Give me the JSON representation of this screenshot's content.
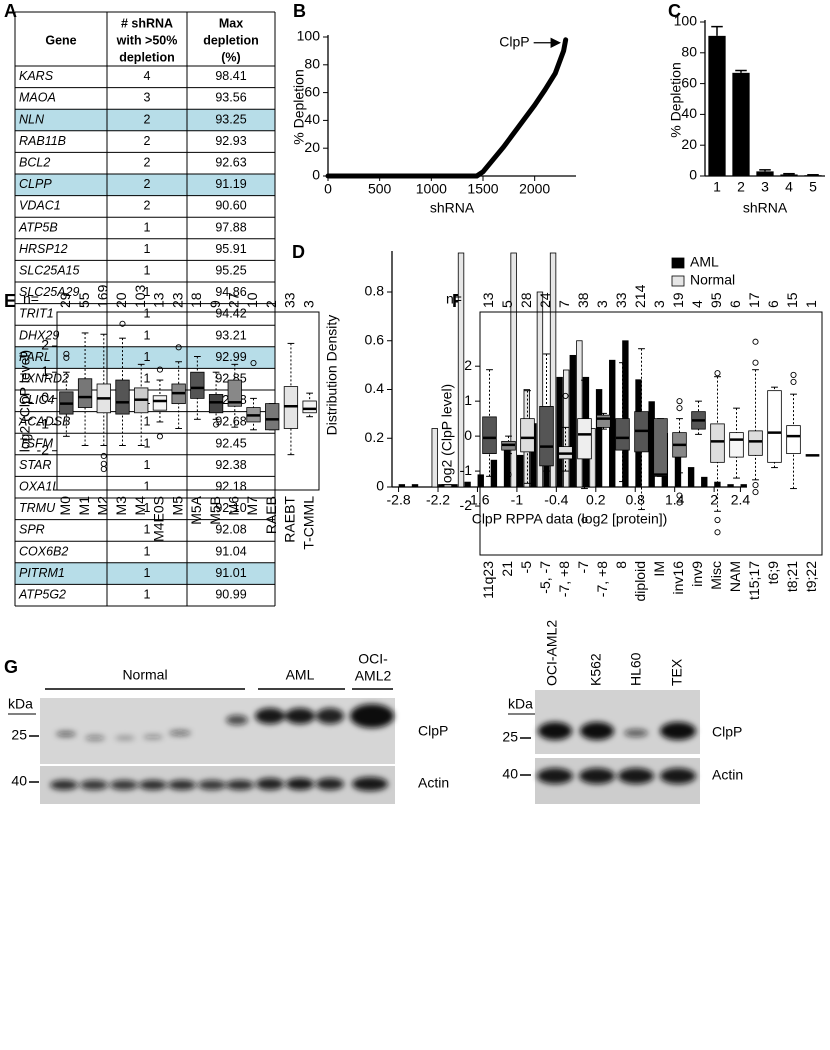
{
  "panel_labels": [
    "A",
    "B",
    "C",
    "D",
    "E",
    "F",
    "G"
  ],
  "table": {
    "header": [
      "Gene",
      [
        "# shRNA",
        "with >50%",
        "depletion"
      ],
      [
        "Max",
        "depletion",
        "(%)"
      ]
    ],
    "highlight_color": "#b7dde8",
    "rows": [
      {
        "gene": "KARS",
        "count": 4,
        "depletion": "98.41",
        "highlight": false
      },
      {
        "gene": "MAOA",
        "count": 3,
        "depletion": "93.56",
        "highlight": false
      },
      {
        "gene": "NLN",
        "count": 2,
        "depletion": "93.25",
        "highlight": true
      },
      {
        "gene": "RAB11B",
        "count": 2,
        "depletion": "92.93",
        "highlight": false
      },
      {
        "gene": "BCL2",
        "count": 2,
        "depletion": "92.63",
        "highlight": false
      },
      {
        "gene": "CLPP",
        "count": 2,
        "depletion": "91.19",
        "highlight": true
      },
      {
        "gene": "VDAC1",
        "count": 2,
        "depletion": "90.60",
        "highlight": false
      },
      {
        "gene": "ATP5B",
        "count": 1,
        "depletion": "97.88",
        "highlight": false
      },
      {
        "gene": "HRSP12",
        "count": 1,
        "depletion": "95.91",
        "highlight": false
      },
      {
        "gene": "SLC25A15",
        "count": 1,
        "depletion": "95.25",
        "highlight": false
      },
      {
        "gene": "SLC25A29",
        "count": 1,
        "depletion": "94.86",
        "highlight": false
      },
      {
        "gene": "TRIT1",
        "count": 1,
        "depletion": "94.42",
        "highlight": false
      },
      {
        "gene": "DHX29",
        "count": 1,
        "depletion": "93.21",
        "highlight": false
      },
      {
        "gene": "PARL",
        "count": 1,
        "depletion": "92.99",
        "highlight": true
      },
      {
        "gene": "TXNRD2",
        "count": 1,
        "depletion": "92.85",
        "highlight": false
      },
      {
        "gene": "CLIC4",
        "count": 1,
        "depletion": "92.78",
        "highlight": false
      },
      {
        "gene": "ACADSB",
        "count": 1,
        "depletion": "92.68",
        "highlight": false
      },
      {
        "gene": "TSFM",
        "count": 1,
        "depletion": "92.45",
        "highlight": false
      },
      {
        "gene": "STAR",
        "count": 1,
        "depletion": "92.38",
        "highlight": false
      },
      {
        "gene": "OXA1L",
        "count": 1,
        "depletion": "92.18",
        "highlight": false
      },
      {
        "gene": "TRMU",
        "count": 1,
        "depletion": "92.10",
        "highlight": false
      },
      {
        "gene": "SPR",
        "count": 1,
        "depletion": "92.08",
        "highlight": false
      },
      {
        "gene": "COX6B2",
        "count": 1,
        "depletion": "91.04",
        "highlight": false
      },
      {
        "gene": "PITRM1",
        "count": 1,
        "depletion": "91.01",
        "highlight": true
      },
      {
        "gene": "ATP5G2",
        "count": 1,
        "depletion": "90.99",
        "highlight": false
      }
    ]
  },
  "chart_data": [
    {
      "type": "line",
      "xlabel": "shRNA",
      "ylabel": "% Depletion",
      "annotation": "ClpP",
      "x": [
        0,
        1440,
        1500,
        1600,
        1700,
        1800,
        1900,
        2000,
        2100,
        2200,
        2280,
        2300
      ],
      "values": [
        0,
        0,
        3,
        12,
        21,
        31,
        41,
        51,
        62,
        74,
        90,
        98
      ],
      "color": "#000000",
      "xlim": [
        0,
        2400
      ],
      "ylim": [
        0,
        100
      ],
      "xticks": [
        0,
        500,
        1000,
        1500,
        2000
      ],
      "yticks": [
        0,
        20,
        40,
        60,
        80,
        100
      ]
    },
    {
      "type": "bar",
      "xlabel": "shRNA",
      "ylabel": "% Depletion",
      "categories": [
        "1",
        "2",
        "3",
        "4",
        "5"
      ],
      "values": [
        91,
        67,
        3,
        1,
        0.5
      ],
      "errors": [
        6,
        1.5,
        1,
        0.5,
        0.3
      ],
      "color": "#000000",
      "ylim": [
        0,
        100
      ],
      "yticks": [
        0,
        20,
        40,
        60,
        80,
        100
      ]
    },
    {
      "type": "grouped_bar",
      "xlabel": "ClpP RPPA data (log2 [protein])",
      "ylabel": "Distribution Density",
      "x": [
        -2.8,
        -2.6,
        -2.4,
        -2.2,
        -2.0,
        -1.8,
        -1.6,
        -1.4,
        -1.2,
        -1.0,
        -0.8,
        -0.6,
        -0.4,
        -0.2,
        0,
        0.2,
        0.4,
        0.6,
        0.8,
        1.0,
        1.2,
        1.4,
        1.6,
        1.8,
        2.0,
        2.2,
        2.4
      ],
      "series": [
        {
          "name": "AML",
          "color": "#000000",
          "values": [
            0.01,
            0.01,
            0,
            0.01,
            0.01,
            0.02,
            0.05,
            0.11,
            0.16,
            0.13,
            0.26,
            0.3,
            0.45,
            0.54,
            0.45,
            0.4,
            0.52,
            0.6,
            0.44,
            0.35,
            0.22,
            0.13,
            0.08,
            0.04,
            0.02,
            0.01,
            0.01
          ]
        },
        {
          "name": "Normal",
          "color": "#e6e6e6",
          "values": [
            0,
            0,
            0,
            0.24,
            0,
            0.96,
            0,
            0,
            0,
            0.96,
            0.4,
            0.8,
            0.96,
            0.48,
            0.6,
            0.24,
            0,
            0,
            0,
            0,
            0,
            0,
            0,
            0,
            0,
            0,
            0
          ]
        }
      ],
      "xlim": [
        -2.9,
        2.5
      ],
      "ylim": [
        0,
        0.96
      ],
      "xticks": [
        -2.8,
        -2.2,
        -1.6,
        -1,
        -0.4,
        0.2,
        0.8,
        1.4,
        2,
        2.4
      ],
      "yticks": [
        0,
        0.2,
        0.4,
        0.6,
        0.8
      ],
      "legend": "upper right"
    },
    {
      "type": "box",
      "ylabel": "log2 (ClpP level)",
      "n_label": "n=",
      "ylim": [
        -3.5,
        3.3
      ],
      "yticks": [
        -2,
        -1,
        0,
        1,
        2
      ],
      "boxes": [
        {
          "category": "M0",
          "n": 29,
          "whislo": -1.45,
          "q1": -0.6,
          "med": -0.2,
          "q3": 0.25,
          "whishi": 1.0,
          "outliers": [
            1.55,
            1.7
          ],
          "color": "#555555"
        },
        {
          "category": "M1",
          "n": 55,
          "whislo": -1.8,
          "q1": -0.35,
          "med": 0.05,
          "q3": 0.75,
          "whishi": 2.5,
          "outliers": [],
          "color": "#777777"
        },
        {
          "category": "M2",
          "n": 169,
          "whislo": -1.8,
          "q1": -0.55,
          "med": 0,
          "q3": 0.55,
          "whishi": 2.45,
          "outliers": [
            -2.2,
            -2.5,
            -2.7
          ],
          "color": "#e4e4e4"
        },
        {
          "category": "M3",
          "n": 20,
          "whislo": -1.8,
          "q1": -0.6,
          "med": -0.15,
          "q3": 0.7,
          "whishi": 2.3,
          "outliers": [
            2.85
          ],
          "color": "#555555"
        },
        {
          "category": "M4",
          "n": 103,
          "whislo": -1.8,
          "q1": -0.55,
          "med": -0.05,
          "q3": 0.4,
          "whishi": 1.3,
          "outliers": [],
          "color": "#cccccc"
        },
        {
          "category": "M4E0S",
          "n": 13,
          "whislo": -0.9,
          "q1": -0.45,
          "med": -0.1,
          "q3": 0.1,
          "whishi": 0.7,
          "outliers": [
            1.1,
            -1.45
          ],
          "color": "#f4f4f4"
        },
        {
          "category": "M5",
          "n": 23,
          "whislo": -1.15,
          "q1": -0.2,
          "med": 0.2,
          "q3": 0.55,
          "whishi": 1.4,
          "outliers": [
            1.95
          ],
          "color": "#888888"
        },
        {
          "category": "M5A",
          "n": 18,
          "whislo": -0.8,
          "q1": 0,
          "med": 0.4,
          "q3": 1.0,
          "whishi": 1.6,
          "outliers": [],
          "color": "#555555"
        },
        {
          "category": "M5B",
          "n": 9,
          "whislo": -0.8,
          "q1": -0.55,
          "med": -0.15,
          "q3": 0.15,
          "whishi": 1.0,
          "outliers": [
            -1.0
          ],
          "color": "#444444"
        },
        {
          "category": "M6",
          "n": 27,
          "whislo": -1.1,
          "q1": -0.3,
          "med": -0.15,
          "q3": 0.7,
          "whishi": 1.3,
          "outliers": [],
          "color": "#888888"
        },
        {
          "category": "M7",
          "n": 10,
          "whislo": -1.2,
          "q1": -0.9,
          "med": -0.65,
          "q3": -0.35,
          "whishi": 0,
          "outliers": [
            1.35
          ],
          "color": "#999999"
        },
        {
          "category": "RAEB",
          "n": 2,
          "whislo": -1.2,
          "q1": -1.2,
          "med": -0.8,
          "q3": -0.2,
          "whishi": -0.2,
          "outliers": [],
          "color": "#777777"
        },
        {
          "category": "RAEBT",
          "n": 33,
          "whislo": -2.15,
          "q1": -1.15,
          "med": -0.3,
          "q3": 0.45,
          "whishi": 2.1,
          "outliers": [],
          "color": "#e4e4e4"
        },
        {
          "category": "T-CMML",
          "n": 3,
          "whislo": -0.7,
          "q1": -0.55,
          "med": -0.4,
          "q3": -0.1,
          "whishi": 0.2,
          "outliers": [],
          "color": "#f4f4f4"
        }
      ]
    },
    {
      "type": "box",
      "ylabel": "log2 (ClpP level)",
      "n_label": "n=",
      "ylim": [
        -3.4,
        3.55
      ],
      "yticks": [
        -2,
        -1,
        0,
        1,
        2
      ],
      "boxes": [
        {
          "category": "11q23",
          "n": 13,
          "whislo": -1.15,
          "q1": -0.5,
          "med": -0.05,
          "q3": 0.55,
          "whishi": 1.9,
          "outliers": [],
          "color": "#555555"
        },
        {
          "category": "21",
          "n": 5,
          "whislo": -0.5,
          "q1": -0.4,
          "med": -0.25,
          "q3": -0.15,
          "whishi": 0,
          "outliers": [
            -1.1
          ],
          "color": "#888888"
        },
        {
          "category": "-5",
          "n": 28,
          "whislo": -1.35,
          "q1": -0.45,
          "med": -0.05,
          "q3": 0.5,
          "whishi": 1.3,
          "outliers": [],
          "color": "#dddddd"
        },
        {
          "category": "-5, -7",
          "n": 24,
          "whislo": -1.0,
          "q1": -0.85,
          "med": -0.3,
          "q3": 0.85,
          "whishi": 2.35,
          "outliers": [],
          "color": "#555555"
        },
        {
          "category": "-7, +8",
          "n": 7,
          "whislo": -1.0,
          "q1": -0.65,
          "med": -0.5,
          "q3": -0.3,
          "whishi": 0.25,
          "outliers": [
            1.15
          ],
          "color": "#dddddd"
        },
        {
          "category": "-7",
          "n": 38,
          "whislo": -1.5,
          "q1": -0.65,
          "med": 0.05,
          "q3": 0.5,
          "whishi": 1.6,
          "outliers": [
            -2.4
          ],
          "color": "#eeeeee"
        },
        {
          "category": "-7, +8",
          "n": 3,
          "whislo": 0.2,
          "q1": 0.25,
          "med": 0.5,
          "q3": 0.6,
          "whishi": 0.65,
          "outliers": [],
          "color": "#888888"
        },
        {
          "category": "8",
          "n": 33,
          "whislo": -1.3,
          "q1": -0.4,
          "med": -0.05,
          "q3": 0.5,
          "whishi": 2.1,
          "outliers": [],
          "color": "#555555"
        },
        {
          "category": "diploid",
          "n": 214,
          "whislo": -2.1,
          "q1": -0.45,
          "med": 0.15,
          "q3": 0.7,
          "whishi": 2.5,
          "outliers": [],
          "color": "#555555"
        },
        {
          "category": "IM",
          "n": 3,
          "whislo": -1.15,
          "q1": -1.15,
          "med": -1.1,
          "q3": 0.5,
          "whishi": 0.5,
          "outliers": [],
          "color": "#666666"
        },
        {
          "category": "inv16",
          "n": 19,
          "whislo": -1.05,
          "q1": -0.6,
          "med": -0.25,
          "q3": 0.1,
          "whishi": 0.5,
          "outliers": [
            0.8,
            1.0,
            -1.7,
            -1.9
          ],
          "color": "#888888"
        },
        {
          "category": "inv9",
          "n": 4,
          "whislo": 0.05,
          "q1": 0.2,
          "med": 0.45,
          "q3": 0.7,
          "whishi": 1.0,
          "outliers": [],
          "color": "#555555"
        },
        {
          "category": "Misc",
          "n": 95,
          "whislo": -2.15,
          "q1": -0.75,
          "med": -0.15,
          "q3": 0.35,
          "whishi": 1.7,
          "outliers": [
            1.8,
            -2.4,
            -2.75
          ],
          "color": "#dddddd"
        },
        {
          "category": "NAM",
          "n": 6,
          "whislo": -1.2,
          "q1": -0.6,
          "med": -0.1,
          "q3": 0.1,
          "whishi": 0.8,
          "outliers": [],
          "color": "#f6f6f6"
        },
        {
          "category": "t15;17",
          "n": 17,
          "whislo": -1.25,
          "q1": -0.55,
          "med": -0.15,
          "q3": 0.15,
          "whishi": 1.9,
          "outliers": [
            2.7,
            2.1,
            -1.4,
            -1.6
          ],
          "color": "#dddddd"
        },
        {
          "category": "t6;9",
          "n": 6,
          "whislo": -0.9,
          "q1": -0.75,
          "med": 0.1,
          "q3": 1.3,
          "whishi": 1.4,
          "outliers": [],
          "color": "#ffffff"
        },
        {
          "category": "t8;21",
          "n": 15,
          "whislo": -1.5,
          "q1": -0.5,
          "med": 0,
          "q3": 0.3,
          "whishi": 1.2,
          "outliers": [
            1.55,
            1.75
          ],
          "color": "#ffffff"
        },
        {
          "category": "t9;22",
          "n": 1,
          "whislo": -0.55,
          "q1": -0.55,
          "med": -0.55,
          "q3": -0.55,
          "whishi": -0.55,
          "outliers": [],
          "color": "#ffffff"
        }
      ]
    }
  ],
  "blots": {
    "left": {
      "groups": [
        "Normal",
        "AML"
      ],
      "group3": [
        "OCI-",
        "AML2"
      ],
      "unit": "kDa",
      "markers": [
        "25",
        "40"
      ],
      "bands": [
        "ClpP",
        "Actin"
      ]
    },
    "right": {
      "lanes": [
        "OCI-AML2",
        "K562",
        "HL60",
        "TEX"
      ],
      "unit": "kDa",
      "markers": [
        "25",
        "40"
      ],
      "bands": [
        "ClpP",
        "Actin"
      ]
    }
  }
}
